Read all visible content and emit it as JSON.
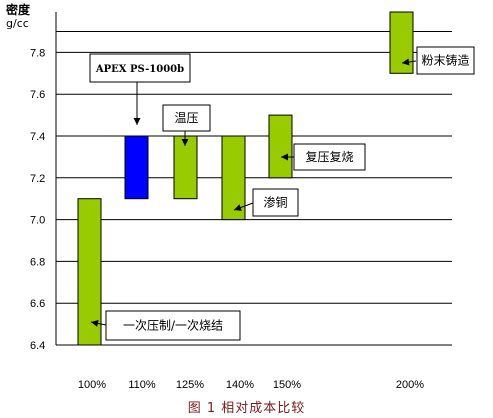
{
  "chart_data": {
    "type": "bar",
    "subtype": "floating-range",
    "ylabel": "密度",
    "yunit": "g/cc",
    "ylim": [
      6.4,
      7.95
    ],
    "yticks": [
      "6.4",
      "6.6",
      "6.8",
      "7.0",
      "7.2",
      "7.4",
      "7.6",
      "7.8"
    ],
    "categories": [
      "100%",
      "110%",
      "125%",
      "140%",
      "150%",
      "200%"
    ],
    "caption": "图 1   相对成本比较",
    "grid": true,
    "bars": [
      {
        "label": "100%",
        "low": 6.4,
        "high": 7.1,
        "color": "#99cc00"
      },
      {
        "label": "110%",
        "low": 7.1,
        "high": 7.4,
        "color": "#0000ff"
      },
      {
        "label": "125%",
        "low": 7.1,
        "high": 7.4,
        "color": "#99cc00"
      },
      {
        "label": "140%",
        "low": 7.0,
        "high": 7.4,
        "color": "#99cc00"
      },
      {
        "label": "150%",
        "low": 7.2,
        "high": 7.5,
        "color": "#99cc00"
      },
      {
        "label": "200%",
        "low": 7.7,
        "high": 8.0,
        "color": "#99cc00"
      }
    ],
    "annotations": [
      {
        "text": "粉末铸造",
        "bar": 5
      },
      {
        "text": "APEX PS-1000b",
        "bar": 1
      },
      {
        "text": "温压",
        "bar": 2
      },
      {
        "text": "复压复烧",
        "bar": 4
      },
      {
        "text": "渗铜",
        "bar": 3
      },
      {
        "text": "一次压制/一次烧结",
        "bar": 0
      }
    ]
  }
}
